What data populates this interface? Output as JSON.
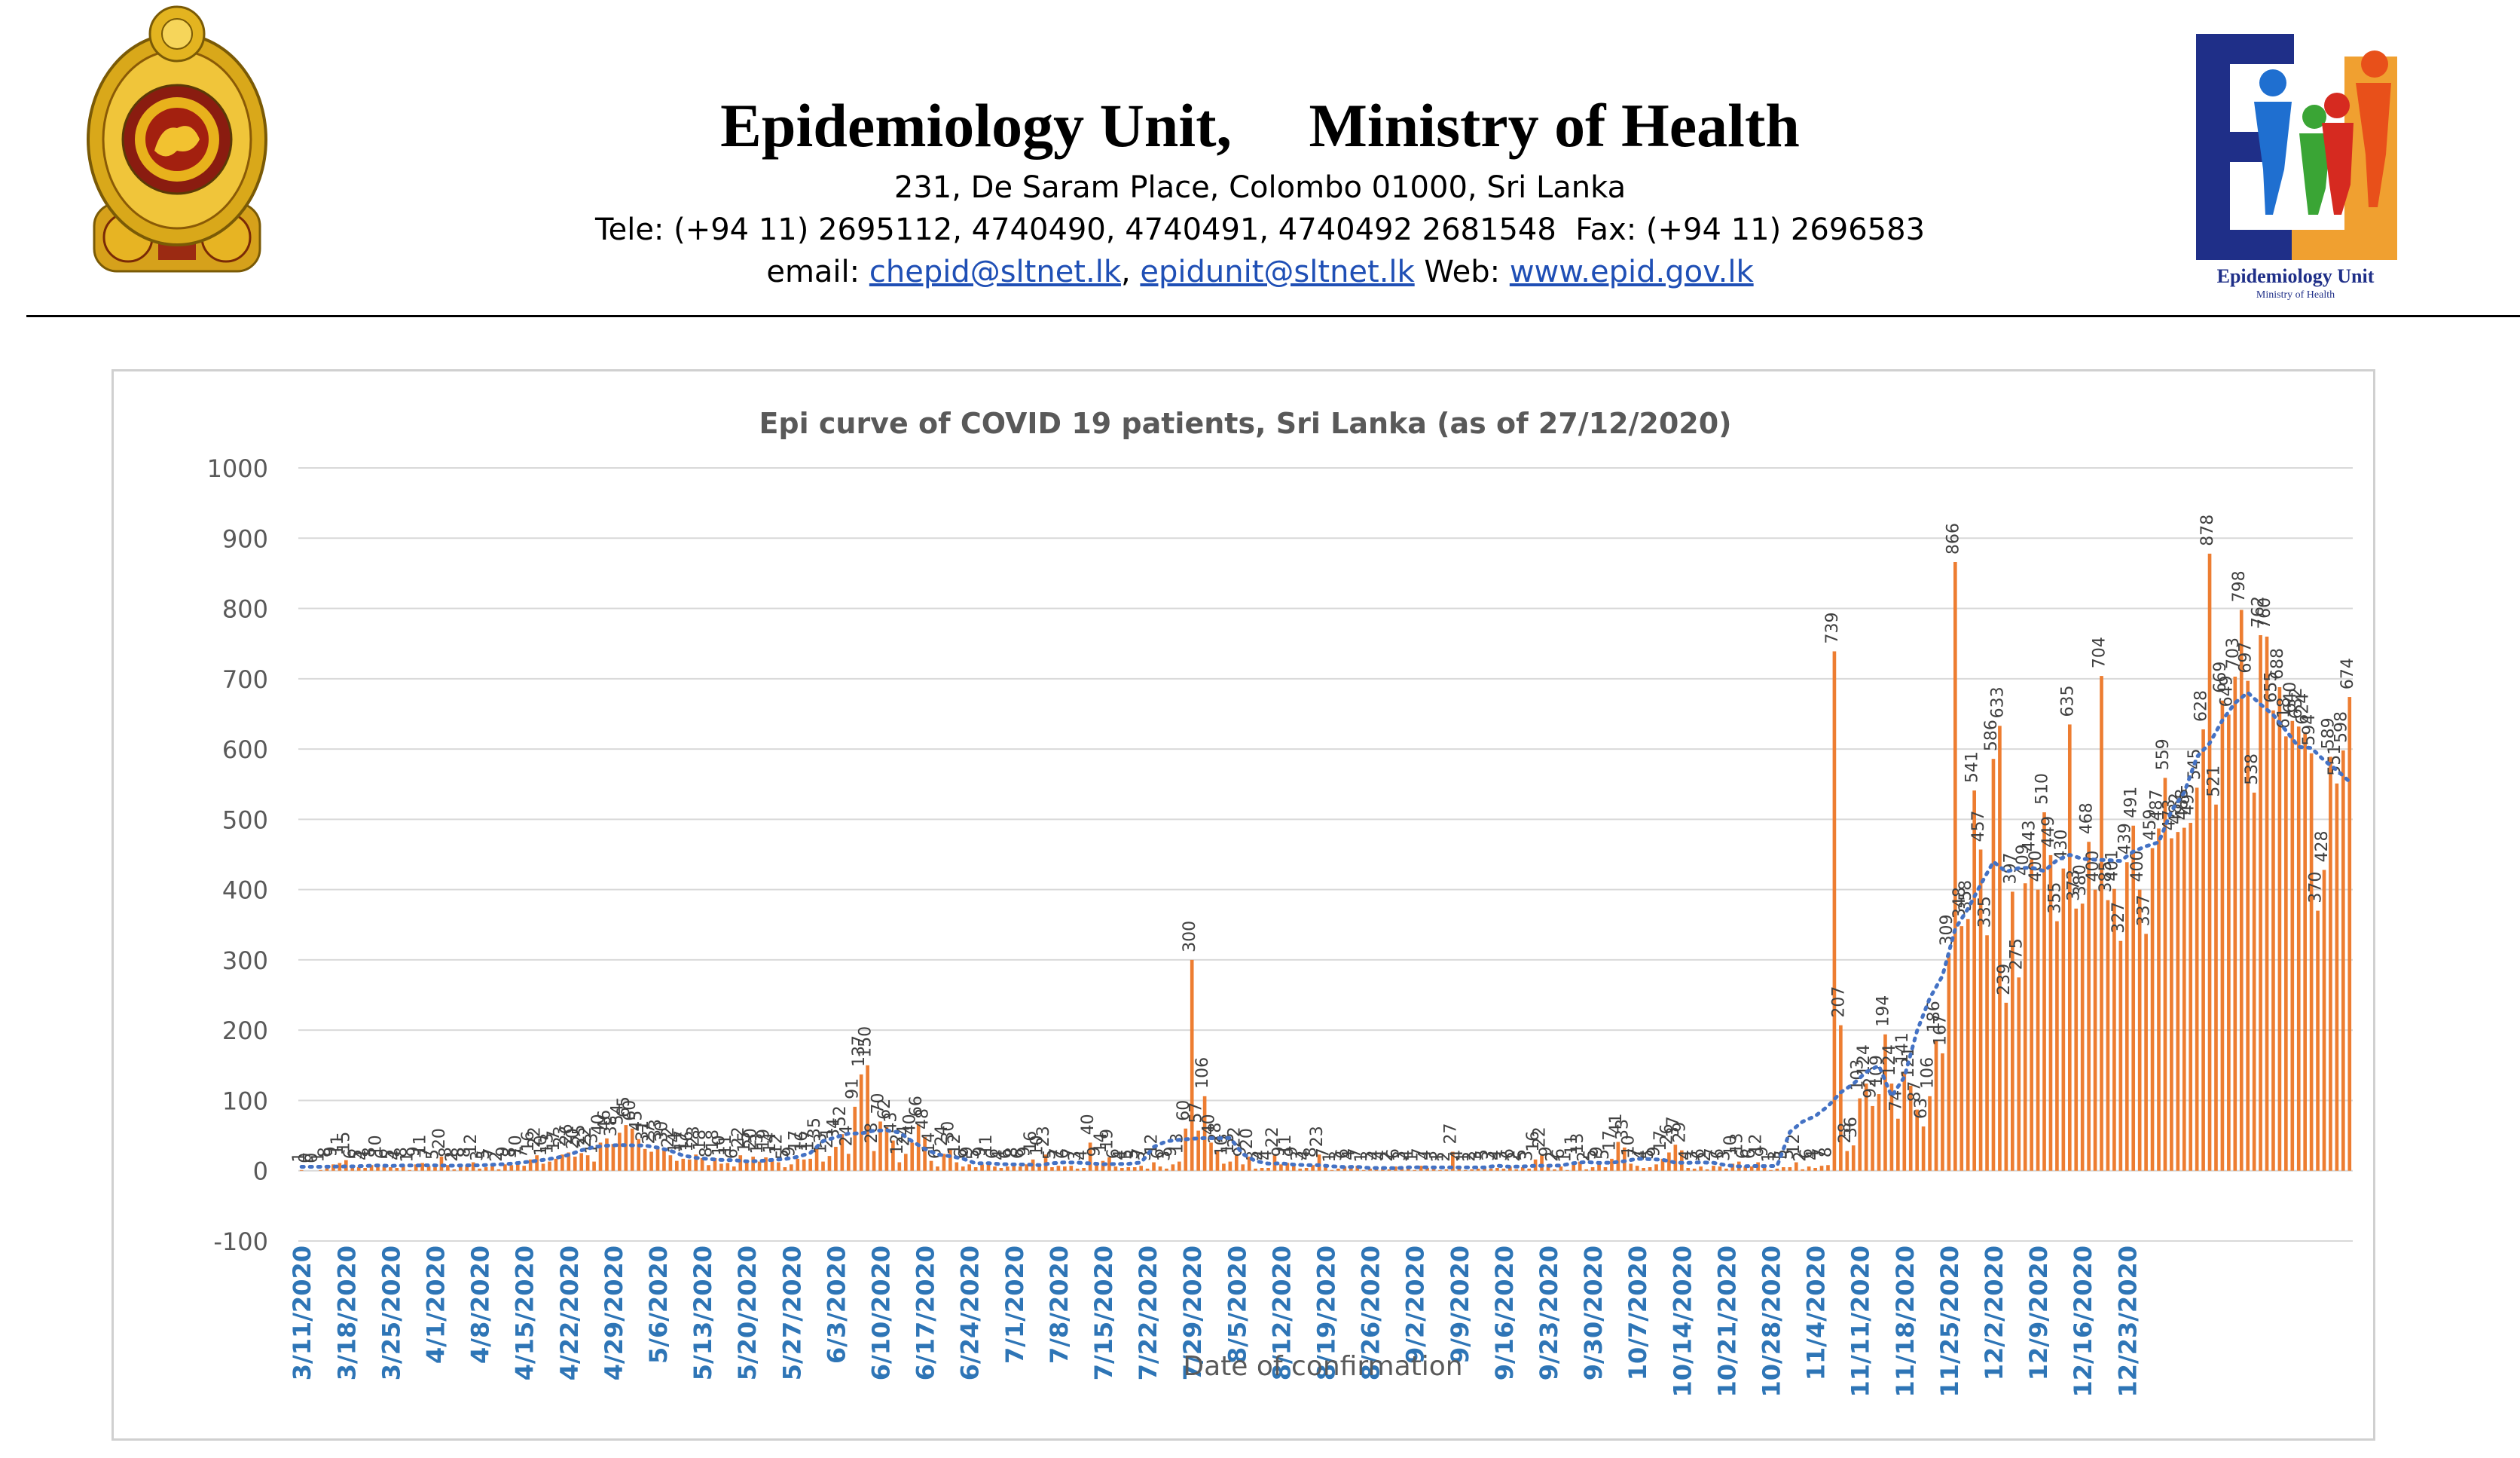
{
  "header": {
    "title": "Epidemiology Unit,     Ministry of Health",
    "address": "231, De Saram Place, Colombo 01000, Sri Lanka",
    "tele": "Tele: (+94 11) 2695112, 4740490, 4740491, 4740492 2681548  Fax: (+94 11) 2696583",
    "email_label": "email: ",
    "email1": "chepid@sltnet.lk",
    "sep": ", ",
    "email2": "epidunit@sltnet.lk",
    "web_label": " Web: ",
    "web": "www.epid.gov.lk"
  },
  "logos": {
    "left": "sri-lanka-emblem-icon",
    "right": "epidemiology-unit-logo-icon",
    "right_text": "Epidemiology Unit",
    "right_subtext": "Ministry of Health"
  },
  "chart_data": {
    "type": "bar",
    "title": "Epi curve of COVID 19 patients, Sri Lanka  (as of 27/12/2020)",
    "xlabel": "Date of confirmation",
    "ylabel": "",
    "ylim": [
      -100,
      1000
    ],
    "yticks": [
      -100,
      0,
      100,
      200,
      300,
      400,
      500,
      600,
      700,
      800,
      900,
      1000
    ],
    "grid": true,
    "start_date": "3/11/2020",
    "end_date": "12/27/2020",
    "x_tick_labels": [
      "3/11/2020",
      "3/18/2020",
      "3/25/2020",
      "4/1/2020",
      "4/8/2020",
      "4/15/2020",
      "4/22/2020",
      "4/29/2020",
      "5/6/2020",
      "5/13/2020",
      "5/20/2020",
      "5/27/2020",
      "6/3/2020",
      "6/10/2020",
      "6/17/2020",
      "6/24/2020",
      "7/1/2020",
      "7/8/2020",
      "7/15/2020",
      "7/22/2020",
      "7/29/2020",
      "8/5/2020",
      "8/12/2020",
      "8/19/2020",
      "8/26/2020",
      "9/2/2020",
      "9/9/2020",
      "9/16/2020",
      "9/23/2020",
      "9/30/2020",
      "10/7/2020",
      "10/14/2020",
      "10/21/2020",
      "10/28/2020",
      "11/4/2020",
      "11/11/2020",
      "11/18/2020",
      "11/25/2020",
      "12/2/2020",
      "12/9/2020",
      "12/16/2020",
      "12/23/2020"
    ],
    "bar_color": "#ed7d31",
    "trend_color": "#4472c4",
    "series": [
      {
        "values": [
          1,
          0,
          0,
          1,
          8,
          9,
          11,
          15,
          6,
          5,
          4,
          8,
          10,
          6,
          5,
          4,
          8,
          1,
          9,
          11,
          7,
          5,
          20,
          8,
          2,
          8,
          8,
          12,
          3,
          5,
          7,
          2,
          9,
          8,
          10,
          7,
          16,
          22,
          10,
          13,
          17,
          23,
          26,
          20,
          25,
          22,
          13,
          40,
          46,
          38,
          54,
          65,
          60,
          45,
          31,
          27,
          33,
          30,
          22,
          14,
          17,
          16,
          23,
          18,
          8,
          18,
          10,
          11,
          6,
          22,
          15,
          20,
          13,
          19,
          14,
          12,
          5,
          9,
          17,
          16,
          17,
          35,
          13,
          21,
          34,
          52,
          24,
          91,
          137,
          150,
          28,
          70,
          62,
          43,
          12,
          24,
          40,
          66,
          48,
          14,
          6,
          24,
          30,
          12,
          6,
          9,
          5,
          9,
          11,
          6,
          4,
          6,
          8,
          6,
          9,
          16,
          10,
          23,
          5,
          7,
          6,
          7,
          3,
          4,
          40,
          9,
          14,
          19,
          6,
          4,
          5,
          5,
          7,
          3,
          12,
          6,
          3,
          9,
          13,
          60,
          300,
          57,
          106,
          40,
          28,
          10,
          13,
          22,
          9,
          20,
          3,
          4,
          4,
          22,
          9,
          11,
          9,
          3,
          4,
          8,
          23,
          7,
          1,
          3,
          6,
          4,
          7,
          1,
          3,
          4,
          4,
          2,
          6,
          3,
          4,
          1,
          7,
          4,
          3,
          1,
          2,
          27,
          4,
          1,
          2,
          3,
          5,
          3,
          4,
          3,
          6,
          2,
          5,
          3,
          16,
          22,
          9,
          2,
          6,
          1,
          11,
          13,
          2,
          5,
          9,
          5,
          17,
          41,
          33,
          10,
          7,
          4,
          5,
          9,
          17,
          26,
          37,
          29,
          4,
          3,
          6,
          2,
          7,
          6,
          3,
          10,
          13,
          6,
          6,
          12,
          9,
          1,
          3,
          5,
          5,
          12,
          2,
          6,
          4,
          7,
          8,
          739,
          207,
          28,
          36,
          103,
          124,
          92,
          109,
          194,
          124,
          74,
          141,
          121,
          87,
          63,
          106,
          186,
          167,
          309,
          866,
          348,
          358,
          541,
          457,
          335,
          586,
          633,
          239,
          397,
          275,
          409,
          443,
          400,
          510,
          449,
          355,
          430,
          635,
          373,
          380,
          468,
          400,
          704,
          385,
          401,
          327,
          439,
          491,
          400,
          337,
          459,
          487,
          559,
          473,
          482,
          488,
          495,
          545,
          628,
          878,
          521,
          669,
          649,
          703,
          798,
          697,
          538,
          762,
          760,
          655,
          688,
          618,
          640,
          632,
          624,
          594,
          370,
          428,
          589,
          551,
          598,
          674
        ]
      }
    ]
  }
}
